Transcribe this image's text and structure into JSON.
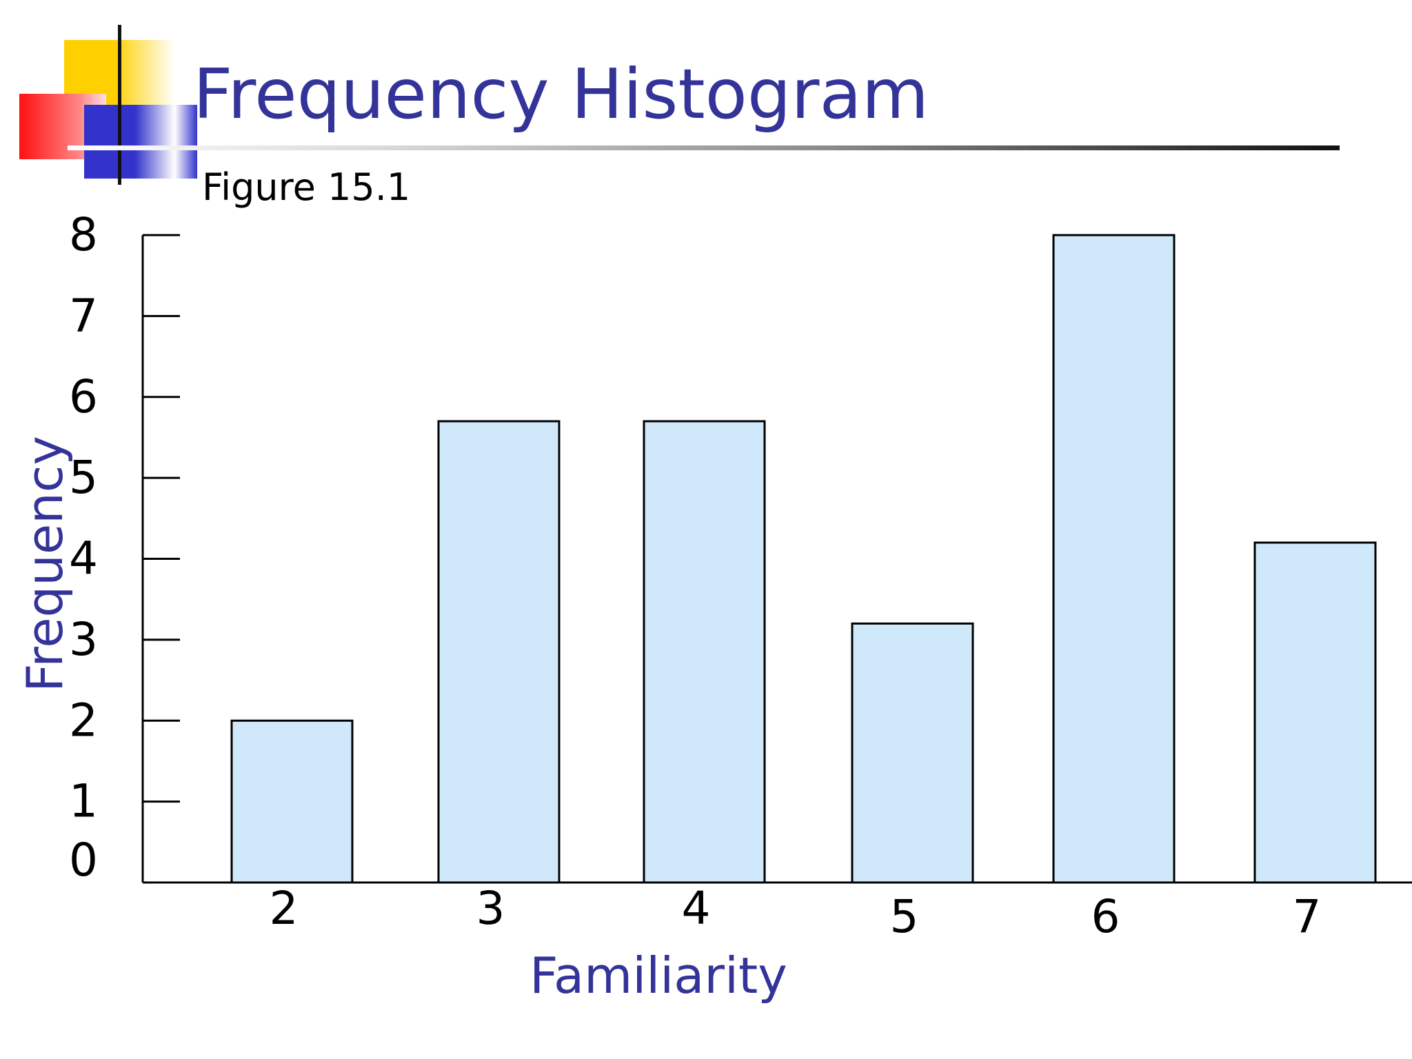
{
  "header": {
    "title": "Frequency Histogram",
    "subtitle": "Figure 15.1"
  },
  "colors": {
    "title": "#333399",
    "bar_fill": "#cfe9fb",
    "bar_stroke": "#000000"
  },
  "chart_data": {
    "type": "bar",
    "title": "Frequency Histogram",
    "subtitle": "Figure 15.1",
    "xlabel": "Familiarity",
    "ylabel": "Frequency",
    "categories": [
      "2",
      "3",
      "4",
      "5",
      "6",
      "7"
    ],
    "values": [
      2,
      5.7,
      5.7,
      3.2,
      8,
      4.2
    ],
    "ylim": [
      0,
      8
    ],
    "yticks": [
      "0",
      "1",
      "2",
      "3",
      "4",
      "5",
      "6",
      "7",
      "8"
    ],
    "grid": false,
    "legend": "none"
  }
}
